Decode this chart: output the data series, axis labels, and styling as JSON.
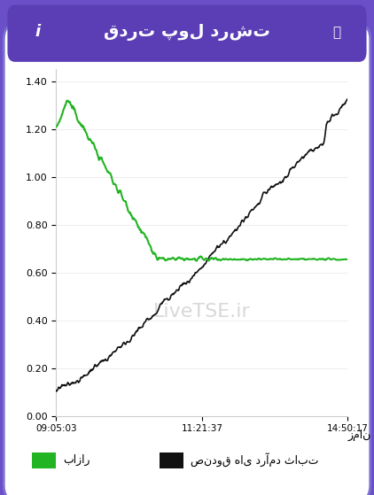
{
  "title": "قدرت پول درشت",
  "xlabel": "زمان",
  "ylabel": "",
  "x_ticks": [
    "09:05:03",
    "11:21:37",
    "14:50:17"
  ],
  "y_ticks": [
    0.0,
    0.2,
    0.4,
    0.6,
    0.8,
    1.0,
    1.2,
    1.4
  ],
  "ylim": [
    0.0,
    1.45
  ],
  "watermark": "LiveTSE.ir",
  "legend_green": "بازار",
  "legend_black": "صندوق های درآمد ثابت",
  "green_color": "#22b422",
  "black_color": "#111111",
  "bg_card": "#ffffff",
  "header_bg": "#5b3eb5",
  "border_color": "#7b5fd4"
}
